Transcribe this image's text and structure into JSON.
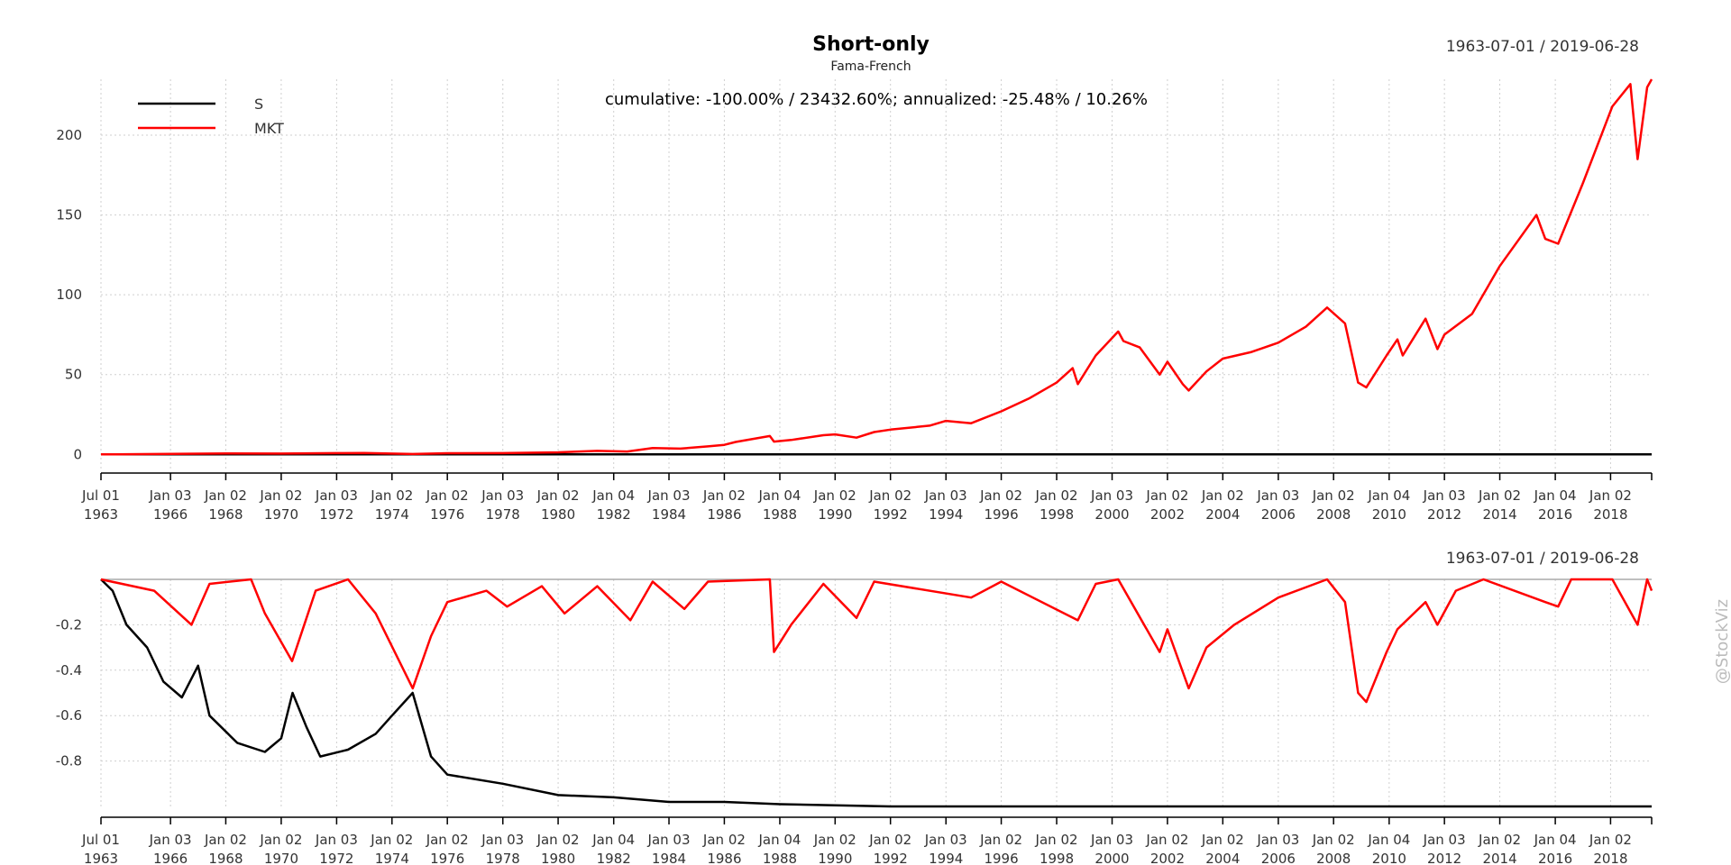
{
  "chart_data": [
    {
      "type": "line",
      "title": "Short-only",
      "subtitle": "Fama-French",
      "date_range": "1963-07-01 / 2019-06-28",
      "annotation": "cumulative: -100.00% / 23432.60%; annualized: -25.48% / 10.26%",
      "legend": {
        "placement": "top-left",
        "entries": [
          "S",
          "MKT"
        ]
      },
      "ylim": [
        -10,
        235
      ],
      "yticks": [
        0,
        50,
        100,
        150,
        200
      ],
      "xlim": [
        "1963-07-01",
        "2019-06-28"
      ],
      "xticks": [
        {
          "date": "1963-07-01",
          "line1": "Jul 01",
          "line2": "1963"
        },
        {
          "date": "1966-01-03",
          "line1": "Jan 03",
          "line2": "1966"
        },
        {
          "date": "1968-01-02",
          "line1": "Jan 02",
          "line2": "1968"
        },
        {
          "date": "1970-01-02",
          "line1": "Jan 02",
          "line2": "1970"
        },
        {
          "date": "1972-01-03",
          "line1": "Jan 03",
          "line2": "1972"
        },
        {
          "date": "1974-01-02",
          "line1": "Jan 02",
          "line2": "1974"
        },
        {
          "date": "1976-01-02",
          "line1": "Jan 02",
          "line2": "1976"
        },
        {
          "date": "1978-01-03",
          "line1": "Jan 03",
          "line2": "1978"
        },
        {
          "date": "1980-01-02",
          "line1": "Jan 02",
          "line2": "1980"
        },
        {
          "date": "1982-01-04",
          "line1": "Jan 04",
          "line2": "1982"
        },
        {
          "date": "1984-01-03",
          "line1": "Jan 03",
          "line2": "1984"
        },
        {
          "date": "1986-01-02",
          "line1": "Jan 02",
          "line2": "1986"
        },
        {
          "date": "1988-01-04",
          "line1": "Jan 04",
          "line2": "1988"
        },
        {
          "date": "1990-01-02",
          "line1": "Jan 02",
          "line2": "1990"
        },
        {
          "date": "1992-01-02",
          "line1": "Jan 02",
          "line2": "1992"
        },
        {
          "date": "1994-01-03",
          "line1": "Jan 03",
          "line2": "1994"
        },
        {
          "date": "1996-01-02",
          "line1": "Jan 02",
          "line2": "1996"
        },
        {
          "date": "1998-01-02",
          "line1": "Jan 02",
          "line2": "1998"
        },
        {
          "date": "2000-01-03",
          "line1": "Jan 03",
          "line2": "2000"
        },
        {
          "date": "2002-01-02",
          "line1": "Jan 02",
          "line2": "2002"
        },
        {
          "date": "2004-01-02",
          "line1": "Jan 02",
          "line2": "2004"
        },
        {
          "date": "2006-01-03",
          "line1": "Jan 03",
          "line2": "2006"
        },
        {
          "date": "2008-01-02",
          "line1": "Jan 02",
          "line2": "2008"
        },
        {
          "date": "2010-01-04",
          "line1": "Jan 04",
          "line2": "2010"
        },
        {
          "date": "2012-01-03",
          "line1": "Jan 03",
          "line2": "2012"
        },
        {
          "date": "2014-01-02",
          "line1": "Jan 02",
          "line2": "2014"
        },
        {
          "date": "2016-01-04",
          "line1": "Jan 04",
          "line2": "2016"
        },
        {
          "date": "2018-01-02",
          "line1": "Jan 02",
          "line2": "2018"
        }
      ],
      "series": [
        {
          "name": "S",
          "color": "#000000",
          "points": [
            [
              "1963-07-01",
              0
            ],
            [
              "1970-01-02",
              0
            ],
            [
              "1975-01-02",
              0
            ],
            [
              "1980-01-02",
              0
            ],
            [
              "1985-01-02",
              0
            ],
            [
              "1990-01-02",
              0
            ],
            [
              "2000-01-03",
              0
            ],
            [
              "2010-01-04",
              0
            ],
            [
              "2019-06-28",
              0
            ]
          ]
        },
        {
          "name": "MKT",
          "color": "#ff0000",
          "points": [
            [
              "1963-07-01",
              0.0
            ],
            [
              "1966-01-03",
              0.3
            ],
            [
              "1968-01-02",
              0.6
            ],
            [
              "1970-01-02",
              0.5
            ],
            [
              "1972-01-03",
              0.8
            ],
            [
              "1973-01-02",
              0.9
            ],
            [
              "1974-10-01",
              0.2
            ],
            [
              "1976-01-02",
              0.7
            ],
            [
              "1978-01-03",
              0.8
            ],
            [
              "1980-01-02",
              1.3
            ],
            [
              "1981-06-01",
              2.2
            ],
            [
              "1982-07-01",
              1.8
            ],
            [
              "1983-06-01",
              4.0
            ],
            [
              "1984-06-01",
              3.6
            ],
            [
              "1985-06-01",
              5.0
            ],
            [
              "1986-01-02",
              6.0
            ],
            [
              "1986-06-01",
              7.8
            ],
            [
              "1987-08-25",
              11.5
            ],
            [
              "1987-10-19",
              8.0
            ],
            [
              "1988-06-01",
              9.0
            ],
            [
              "1989-08-01",
              12.0
            ],
            [
              "1990-01-02",
              12.5
            ],
            [
              "1990-10-11",
              10.5
            ],
            [
              "1991-06-01",
              14.0
            ],
            [
              "1992-01-02",
              15.5
            ],
            [
              "1993-06-01",
              18.0
            ],
            [
              "1994-01-03",
              21.0
            ],
            [
              "1994-12-01",
              19.5
            ],
            [
              "1996-01-02",
              27.0
            ],
            [
              "1997-01-02",
              35.0
            ],
            [
              "1998-01-02",
              45.0
            ],
            [
              "1998-08-01",
              54.0
            ],
            [
              "1998-10-08",
              44.0
            ],
            [
              "1999-06-01",
              62.0
            ],
            [
              "2000-03-24",
              77.0
            ],
            [
              "2000-06-01",
              71.0
            ],
            [
              "2001-01-02",
              67.0
            ],
            [
              "2001-09-21",
              50.0
            ],
            [
              "2002-01-02",
              58.0
            ],
            [
              "2002-07-23",
              44.0
            ],
            [
              "2002-10-09",
              40.0
            ],
            [
              "2003-06-01",
              52.0
            ],
            [
              "2004-01-02",
              60.0
            ],
            [
              "2005-01-03",
              64.0
            ],
            [
              "2006-01-03",
              70.0
            ],
            [
              "2007-01-02",
              80.0
            ],
            [
              "2007-10-09",
              92.0
            ],
            [
              "2008-06-01",
              82.0
            ],
            [
              "2008-11-20",
              45.0
            ],
            [
              "2009-03-09",
              42.0
            ],
            [
              "2009-12-01",
              62.0
            ],
            [
              "2010-04-23",
              72.0
            ],
            [
              "2010-07-02",
              62.0
            ],
            [
              "2011-04-29",
              85.0
            ],
            [
              "2011-10-03",
              66.0
            ],
            [
              "2012-01-03",
              75.0
            ],
            [
              "2013-01-02",
              88.0
            ],
            [
              "2014-01-02",
              118.0
            ],
            [
              "2015-05-01",
              150.0
            ],
            [
              "2015-08-25",
              135.0
            ],
            [
              "2016-02-11",
              132.0
            ],
            [
              "2016-08-01",
              152.0
            ],
            [
              "2017-01-03",
              170.0
            ],
            [
              "2018-01-26",
              218.0
            ],
            [
              "2018-09-20",
              232.0
            ],
            [
              "2018-12-24",
              185.0
            ],
            [
              "2019-04-30",
              230.0
            ],
            [
              "2019-06-28",
              235.0
            ]
          ]
        }
      ]
    },
    {
      "type": "line",
      "title": "",
      "date_range": "1963-07-01 / 2019-06-28",
      "ylim": [
        -1.0,
        0.0
      ],
      "yticks": [
        -0.2,
        -0.4,
        -0.6,
        -0.8
      ],
      "ytick_labels": [
        "-0.2",
        "-0.4",
        "-0.6",
        "-0.8"
      ],
      "xlim": [
        "1963-07-01",
        "2019-06-28"
      ],
      "series": [
        {
          "name": "S",
          "color": "#000000",
          "points": [
            [
              "1963-07-01",
              0.0
            ],
            [
              "1963-12-01",
              -0.05
            ],
            [
              "1964-06-01",
              -0.2
            ],
            [
              "1965-03-01",
              -0.3
            ],
            [
              "1965-10-01",
              -0.45
            ],
            [
              "1966-06-01",
              -0.52
            ],
            [
              "1967-01-02",
              -0.38
            ],
            [
              "1967-06-01",
              -0.6
            ],
            [
              "1968-06-01",
              -0.72
            ],
            [
              "1969-06-01",
              -0.76
            ],
            [
              "1970-01-02",
              -0.7
            ],
            [
              "1970-06-01",
              -0.5
            ],
            [
              "1970-12-01",
              -0.65
            ],
            [
              "1971-06-01",
              -0.78
            ],
            [
              "1972-06-01",
              -0.75
            ],
            [
              "1973-06-01",
              -0.68
            ],
            [
              "1974-01-02",
              -0.6
            ],
            [
              "1974-10-01",
              -0.5
            ],
            [
              "1975-06-01",
              -0.78
            ],
            [
              "1976-01-02",
              -0.86
            ],
            [
              "1978-01-03",
              -0.9
            ],
            [
              "1980-01-02",
              -0.95
            ],
            [
              "1982-01-04",
              -0.96
            ],
            [
              "1984-01-03",
              -0.98
            ],
            [
              "1986-01-02",
              -0.98
            ],
            [
              "1988-01-04",
              -0.99
            ],
            [
              "1990-01-02",
              -0.995
            ],
            [
              "1992-01-02",
              -1.0
            ],
            [
              "2000-01-03",
              -1.0
            ],
            [
              "2010-01-04",
              -1.0
            ],
            [
              "2019-06-28",
              -1.0
            ]
          ]
        },
        {
          "name": "MKT",
          "color": "#ff0000",
          "points": [
            [
              "1963-07-01",
              0.0
            ],
            [
              "1965-06-01",
              -0.05
            ],
            [
              "1966-10-07",
              -0.2
            ],
            [
              "1967-06-01",
              -0.02
            ],
            [
              "1968-12-01",
              0.0
            ],
            [
              "1969-06-01",
              -0.15
            ],
            [
              "1970-05-26",
              -0.36
            ],
            [
              "1971-04-01",
              -0.05
            ],
            [
              "1972-06-01",
              0.0
            ],
            [
              "1973-06-01",
              -0.15
            ],
            [
              "1974-10-03",
              -0.48
            ],
            [
              "1975-06-01",
              -0.25
            ],
            [
              "1976-01-02",
              -0.1
            ],
            [
              "1977-06-01",
              -0.05
            ],
            [
              "1978-03-01",
              -0.12
            ],
            [
              "1979-06-01",
              -0.03
            ],
            [
              "1980-03-27",
              -0.15
            ],
            [
              "1981-06-01",
              -0.03
            ],
            [
              "1982-08-12",
              -0.18
            ],
            [
              "1983-06-01",
              -0.01
            ],
            [
              "1984-07-24",
              -0.13
            ],
            [
              "1985-06-01",
              -0.01
            ],
            [
              "1987-08-25",
              0.0
            ],
            [
              "1987-10-19",
              -0.32
            ],
            [
              "1988-06-01",
              -0.2
            ],
            [
              "1989-08-01",
              -0.02
            ],
            [
              "1990-10-11",
              -0.17
            ],
            [
              "1991-06-01",
              -0.01
            ],
            [
              "1994-12-01",
              -0.08
            ],
            [
              "1996-01-02",
              -0.01
            ],
            [
              "1998-10-08",
              -0.18
            ],
            [
              "1999-06-01",
              -0.02
            ],
            [
              "2000-03-24",
              0.0
            ],
            [
              "2001-09-21",
              -0.32
            ],
            [
              "2002-01-02",
              -0.22
            ],
            [
              "2002-10-09",
              -0.48
            ],
            [
              "2003-06-01",
              -0.3
            ],
            [
              "2004-06-01",
              -0.2
            ],
            [
              "2006-01-03",
              -0.08
            ],
            [
              "2007-10-09",
              0.0
            ],
            [
              "2008-06-01",
              -0.1
            ],
            [
              "2008-11-20",
              -0.5
            ],
            [
              "2009-03-09",
              -0.54
            ],
            [
              "2009-12-01",
              -0.32
            ],
            [
              "2010-04-23",
              -0.22
            ],
            [
              "2011-04-29",
              -0.1
            ],
            [
              "2011-10-03",
              -0.2
            ],
            [
              "2012-06-01",
              -0.05
            ],
            [
              "2013-06-01",
              0.0
            ],
            [
              "2015-08-25",
              -0.1
            ],
            [
              "2016-02-11",
              -0.12
            ],
            [
              "2016-08-01",
              0.0
            ],
            [
              "2018-01-26",
              0.0
            ],
            [
              "2018-12-24",
              -0.2
            ],
            [
              "2019-04-30",
              0.0
            ],
            [
              "2019-06-28",
              -0.05
            ]
          ]
        }
      ]
    }
  ],
  "watermark": "@StockViz"
}
